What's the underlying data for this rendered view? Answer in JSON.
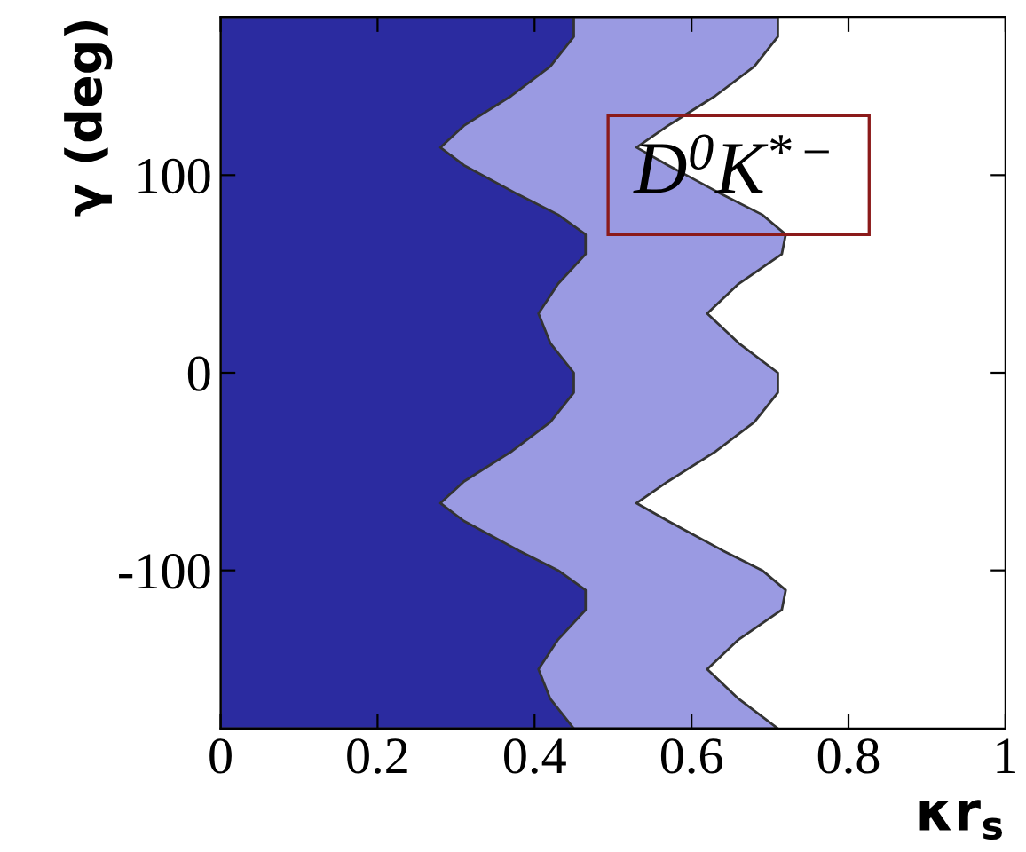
{
  "chart_data": {
    "type": "area",
    "orientation": "horizontal",
    "xlabel": "κr$_{s}$",
    "ylabel": "γ (deg)",
    "x": [
      -180,
      -165,
      -150,
      -135,
      -120,
      -110,
      -100,
      -90,
      -75,
      -66,
      -55,
      -40,
      -25,
      -10,
      0,
      15,
      30,
      45,
      60,
      70,
      80,
      90,
      105,
      114,
      125,
      140,
      155,
      170,
      180
    ],
    "series": [
      {
        "color": "#9a9ae2",
        "values": [
          0.71,
          0.66,
          0.62,
          0.66,
          0.715,
          0.72,
          0.69,
          0.64,
          0.57,
          0.53,
          0.57,
          0.63,
          0.68,
          0.71,
          0.71,
          0.66,
          0.62,
          0.66,
          0.715,
          0.72,
          0.69,
          0.64,
          0.57,
          0.53,
          0.57,
          0.63,
          0.68,
          0.71,
          0.71
        ]
      },
      {
        "color": "#2b2ba0",
        "values": [
          0.45,
          0.42,
          0.405,
          0.43,
          0.465,
          0.465,
          0.43,
          0.38,
          0.31,
          0.28,
          0.31,
          0.37,
          0.42,
          0.45,
          0.45,
          0.42,
          0.405,
          0.43,
          0.465,
          0.465,
          0.43,
          0.38,
          0.31,
          0.28,
          0.31,
          0.37,
          0.42,
          0.45,
          0.45
        ]
      }
    ],
    "xlim": [
      0,
      1
    ],
    "xticks": [
      0,
      0.2,
      0.4,
      0.6,
      0.8,
      1
    ],
    "ylim": [
      -180,
      180
    ],
    "yticks": [
      -100,
      0,
      100
    ],
    "annotations": [
      "D$^{0}$K$^{*−}$"
    ],
    "grid": false,
    "legend": false
  }
}
